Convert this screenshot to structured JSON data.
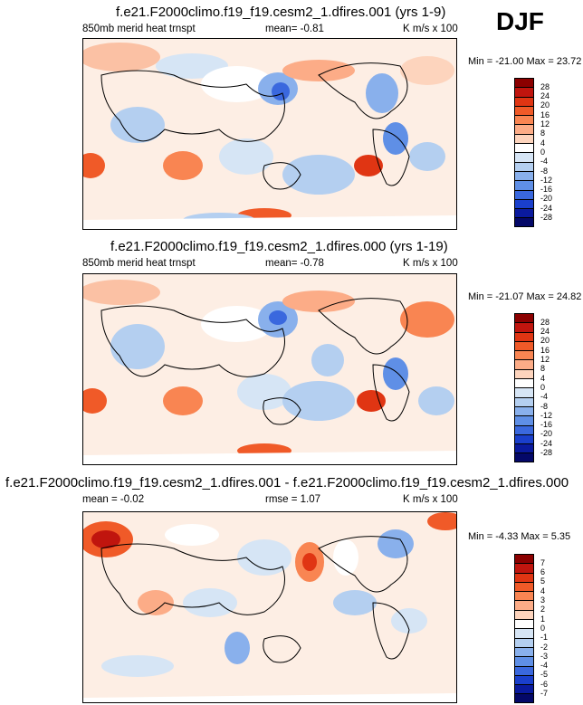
{
  "season": "DJF",
  "panels": [
    {
      "title": "f.e21.F2000climo.f19_f19.cesm2_1.dfires.001 (yrs 1-9)",
      "left_label": "850mb merid heat trnspt",
      "mean_label": "mean=  -0.81",
      "units": "K m/s x 100",
      "minmax": "Min = -21.00 Max =  23.72",
      "levels": [
        "28",
        "24",
        "20",
        "16",
        "12",
        "8",
        "4",
        "0",
        "-4",
        "-8",
        "-12",
        "-16",
        "-20",
        "-24",
        "-28"
      ],
      "colors": [
        "#8b0000",
        "#c0150e",
        "#e03513",
        "#f05a28",
        "#f98552",
        "#fcac87",
        "#fdd4bd",
        "#ffffff",
        "#d6e5f5",
        "#b4cff0",
        "#89b0ec",
        "#5f8fe6",
        "#3a68de",
        "#1a3fcc",
        "#0a1a9e",
        "#040868"
      ]
    },
    {
      "title": "f.e21.F2000climo.f19_f19.cesm2_1.dfires.000 (yrs 1-19)",
      "left_label": "850mb merid heat trnspt",
      "mean_label": "mean=  -0.78",
      "units": "K m/s x 100",
      "minmax": "Min = -21.07 Max =  24.82",
      "levels": [
        "28",
        "24",
        "20",
        "16",
        "12",
        "8",
        "4",
        "0",
        "-4",
        "-8",
        "-12",
        "-16",
        "-20",
        "-24",
        "-28"
      ],
      "colors": [
        "#8b0000",
        "#c0150e",
        "#e03513",
        "#f05a28",
        "#f98552",
        "#fcac87",
        "#fdd4bd",
        "#ffffff",
        "#d6e5f5",
        "#b4cff0",
        "#89b0ec",
        "#5f8fe6",
        "#3a68de",
        "#1a3fcc",
        "#0a1a9e",
        "#040868"
      ]
    },
    {
      "title": "f.e21.F2000climo.f19_f19.cesm2_1.dfires.001 - f.e21.F2000climo.f19_f19.cesm2_1.dfires.000",
      "left_label": "mean = -0.02",
      "mean_label": "rmse =  1.07",
      "units": "K m/s x 100",
      "minmax": "Min =  -4.33 Max =   5.35",
      "levels": [
        "7",
        "6",
        "5",
        "4",
        "3",
        "2",
        "1",
        "0",
        "-1",
        "-2",
        "-3",
        "-4",
        "-5",
        "-6",
        "-7"
      ],
      "colors": [
        "#8b0000",
        "#c0150e",
        "#e03513",
        "#f05a28",
        "#f98552",
        "#fcac87",
        "#fdd4bd",
        "#ffffff",
        "#d6e5f5",
        "#b4cff0",
        "#89b0ec",
        "#5f8fe6",
        "#3a68de",
        "#1a3fcc",
        "#0a1a9e",
        "#040868"
      ]
    }
  ]
}
